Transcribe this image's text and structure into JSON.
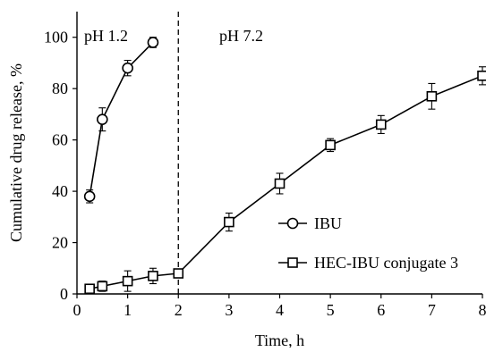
{
  "chart_data": {
    "type": "line",
    "xlabel": "Time, h",
    "ylabel": "Cumulative drug release, %",
    "xlim": [
      0,
      8
    ],
    "ylim": [
      0,
      110
    ],
    "xticks": [
      0,
      1,
      2,
      3,
      4,
      5,
      6,
      7,
      8
    ],
    "yticks": [
      0,
      20,
      40,
      60,
      80,
      100
    ],
    "grid": false,
    "legend_position": "right",
    "divider_x": 2,
    "annotations": [
      {
        "text": "pH 1.2",
        "x": 0.5,
        "y": 100
      },
      {
        "text": "pH 7.2",
        "x": 3.15,
        "y": 100
      }
    ],
    "series": [
      {
        "name": "IBU",
        "marker": "circle",
        "x": [
          0.25,
          0.5,
          1,
          1.5
        ],
        "y": [
          38,
          68,
          88,
          98
        ],
        "err": [
          2.5,
          4.5,
          3,
          2
        ]
      },
      {
        "name": "HEC-IBU conjugate 3",
        "marker": "square",
        "x": [
          0.25,
          0.5,
          1,
          1.5,
          2,
          3,
          4,
          5,
          6,
          7,
          8
        ],
        "y": [
          2,
          3,
          5,
          7,
          8,
          28,
          43,
          58,
          66,
          77,
          85
        ],
        "err": [
          1.5,
          2,
          4,
          3,
          1.5,
          3.5,
          4,
          2.5,
          3.5,
          5,
          3.5
        ]
      }
    ]
  }
}
